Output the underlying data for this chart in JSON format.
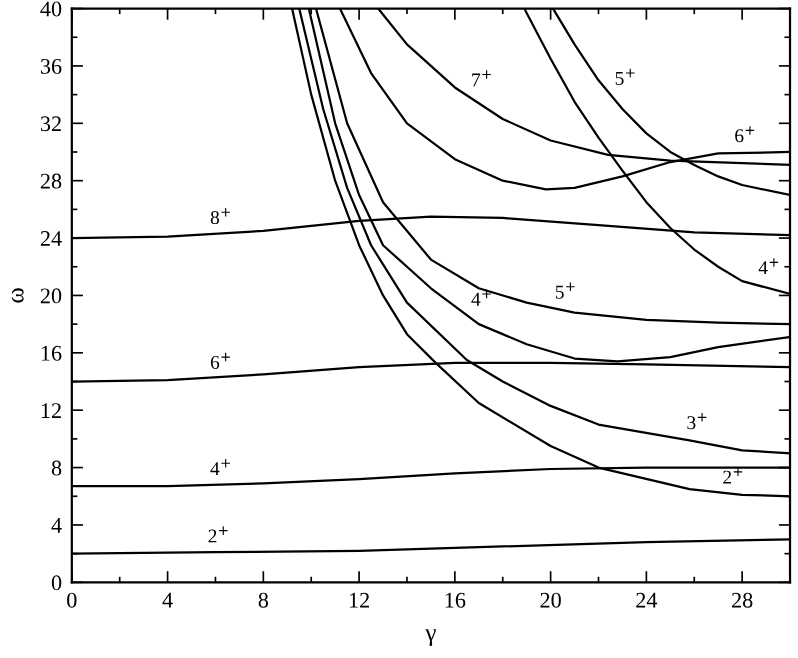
{
  "chart_data": {
    "type": "line",
    "xlabel": "γ",
    "ylabel": "ω",
    "grid": false,
    "legend": false,
    "marker": "none",
    "line_style": "solid",
    "xlim": [
      0,
      30
    ],
    "ylim": [
      0,
      40
    ],
    "xticks": [
      0,
      {
        "value": 2,
        "label": null
      },
      4,
      {
        "value": 6,
        "label": null
      },
      8,
      {
        "value": 10,
        "label": null
      },
      12,
      {
        "value": 14,
        "label": null
      },
      16,
      {
        "value": 18,
        "label": null
      },
      20,
      {
        "value": 22,
        "label": null
      },
      24,
      {
        "value": 26,
        "label": null
      },
      28,
      {
        "value": 30,
        "label": null
      }
    ],
    "yticks": [
      0,
      {
        "value": 2,
        "label": null
      },
      4,
      {
        "value": 6,
        "label": null
      },
      8,
      {
        "value": 10,
        "label": null
      },
      12,
      {
        "value": 14,
        "label": null
      },
      16,
      {
        "value": 18,
        "label": null
      },
      20,
      {
        "value": 22,
        "label": null
      },
      24,
      {
        "value": 26,
        "label": null
      },
      28,
      {
        "value": 30,
        "label": null
      },
      32,
      {
        "value": 34,
        "label": null
      },
      36,
      {
        "value": 38,
        "label": null
      },
      40
    ],
    "series": [
      {
        "color": "#000000",
        "x": [
          0,
          6,
          12,
          18,
          24,
          30
        ],
        "values": [
          2.0,
          2.1,
          2.2,
          2.5,
          2.8,
          3.0
        ]
      },
      {
        "color": "#000000",
        "x": [
          0,
          4,
          8,
          12,
          16,
          20,
          24,
          30
        ],
        "values": [
          6.7,
          6.7,
          6.9,
          7.2,
          7.6,
          7.9,
          8.0,
          8.0
        ]
      },
      {
        "color": "#000000",
        "x": [
          0,
          4,
          8,
          12,
          16,
          20,
          24,
          30
        ],
        "values": [
          14.0,
          14.1,
          14.5,
          15.0,
          15.3,
          15.3,
          15.2,
          15.0
        ]
      },
      {
        "color": "#000000",
        "x": [
          0,
          4,
          8,
          12,
          15,
          18,
          22,
          26,
          30
        ],
        "values": [
          24.0,
          24.1,
          24.5,
          25.2,
          25.5,
          25.4,
          24.9,
          24.4,
          24.2
        ]
      },
      {
        "color": "#000000",
        "x": [
          9.2,
          10,
          11,
          12,
          13,
          14,
          15.2,
          17,
          20,
          22,
          25.8,
          28,
          30
        ],
        "values": [
          40,
          34,
          28,
          23.5,
          20,
          17.3,
          15.3,
          12.5,
          9.5,
          8,
          6.5,
          6.1,
          6.0
        ]
      },
      {
        "color": "#000000",
        "x": [
          9.5,
          10.5,
          11.5,
          12.5,
          14,
          16.5,
          18,
          20,
          22,
          25.8,
          28,
          30
        ],
        "values": [
          40,
          33,
          27.5,
          23.5,
          19.5,
          15.5,
          14,
          12.3,
          11,
          9.9,
          9.2,
          9.0
        ]
      },
      {
        "color": "#000000",
        "x": [
          9.9,
          11,
          12,
          13,
          15,
          17,
          19,
          21,
          22.8,
          25,
          27,
          30
        ],
        "values": [
          40,
          32,
          27,
          23.5,
          20.5,
          18.0,
          16.6,
          15.6,
          15.4,
          15.7,
          16.4,
          17.1
        ]
      },
      {
        "color": "#000000",
        "x": [
          10.2,
          11.5,
          13,
          15,
          17,
          19,
          21,
          24,
          27,
          30
        ],
        "values": [
          40,
          32,
          26.5,
          22.5,
          20.5,
          19.5,
          18.8,
          18.3,
          18.1,
          18.0
        ]
      },
      {
        "color": "#000000",
        "x": [
          11.2,
          12.5,
          14,
          16,
          18,
          19.8,
          21,
          23,
          25,
          27,
          30
        ],
        "values": [
          40,
          35.5,
          32,
          29.5,
          28,
          27.4,
          27.5,
          28.3,
          29.3,
          29.9,
          30.0
        ]
      },
      {
        "color": "#000000",
        "x": [
          12.8,
          14,
          16,
          18,
          20,
          22.4,
          25,
          30
        ],
        "values": [
          40,
          37.5,
          34.5,
          32.3,
          30.8,
          29.8,
          29.4,
          29.1
        ]
      },
      {
        "color": "#000000",
        "x": [
          18.9,
          20,
          21,
          22,
          23,
          24,
          25,
          26,
          27,
          28,
          30
        ],
        "values": [
          40,
          36.5,
          33.5,
          31,
          28.7,
          26.5,
          24.7,
          23.2,
          22,
          21,
          20.1
        ]
      },
      {
        "color": "#000000",
        "x": [
          20.1,
          21,
          22,
          23,
          24,
          25,
          26,
          27,
          28,
          30
        ],
        "values": [
          40,
          37.5,
          35,
          33,
          31.3,
          30,
          29.1,
          28.3,
          27.7,
          27.0
        ]
      }
    ],
    "annotations": [
      {
        "text": "2$^{+}$",
        "x": 5.5,
        "y": 2.1
      },
      {
        "text": "4$^{+}$",
        "x": 5.6,
        "y": 6.8
      },
      {
        "text": "6$^{+}$",
        "x": 5.6,
        "y": 14.2
      },
      {
        "text": "8$^{+}$",
        "x": 5.6,
        "y": 24.3
      },
      {
        "text": "2$^{+}$",
        "x": 27,
        "y": 6.2
      },
      {
        "text": "3$^{+}$",
        "x": 25.5,
        "y": 10.0
      },
      {
        "text": "4$^{+}$",
        "x": 16.5,
        "y": 18.6
      },
      {
        "text": "5$^{+}$",
        "x": 20,
        "y": 19.1
      },
      {
        "text": "6$^{+}$",
        "x": 27.5,
        "y": 30.0
      },
      {
        "text": "7$^{+}$",
        "x": 16.5,
        "y": 33.9
      },
      {
        "text": "4$^{+}$",
        "x": 28.5,
        "y": 20.8
      },
      {
        "text": "5$^{+}$",
        "x": 22.5,
        "y": 34.0
      }
    ]
  }
}
